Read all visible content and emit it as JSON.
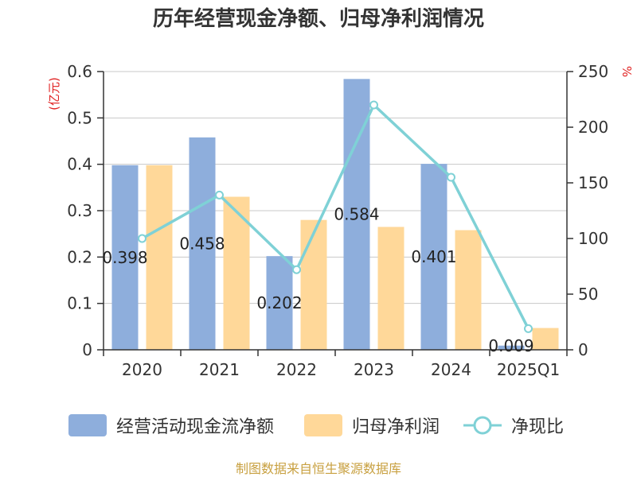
{
  "chart_data": {
    "type": "bar",
    "title": "历年经营现金净额、归母净利润情况",
    "left_axis_label": "(亿元)",
    "right_axis_label": "%",
    "categories": [
      "2020",
      "2021",
      "2022",
      "2023",
      "2024",
      "2025Q1"
    ],
    "left_ylim": [
      0,
      0.6
    ],
    "left_ticks": [
      "0",
      "0.1",
      "0.2",
      "0.3",
      "0.4",
      "0.5",
      "0.6"
    ],
    "right_ylim": [
      0,
      250
    ],
    "right_ticks": [
      "0",
      "50",
      "100",
      "150",
      "200",
      "250"
    ],
    "grid": true,
    "legend_position": "bottom",
    "series": [
      {
        "name": "经营活动现金流净额",
        "type": "bar",
        "axis": "left",
        "color": "#8eaedc",
        "values": [
          0.398,
          0.458,
          0.202,
          0.584,
          0.401,
          0.009
        ],
        "labels": [
          "0.398",
          "0.458",
          "0.202",
          "0.584",
          "0.401",
          "0.009"
        ]
      },
      {
        "name": "归母净利润",
        "type": "bar",
        "axis": "left",
        "color": "#ffd899",
        "values": [
          0.398,
          0.33,
          0.28,
          0.265,
          0.258,
          0.047
        ]
      },
      {
        "name": "净现比",
        "type": "line",
        "axis": "right",
        "color": "#7fd1d6",
        "values": [
          100,
          139,
          72,
          220,
          155,
          19
        ]
      }
    ],
    "source": "制图数据来自恒生聚源数据库"
  }
}
